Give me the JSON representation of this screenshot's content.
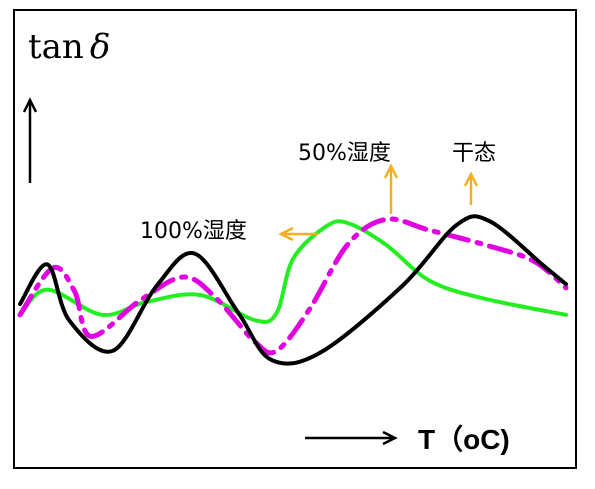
{
  "chart_data": {
    "type": "line",
    "ylabel_main": "tan",
    "ylabel_symbol": "δ",
    "xlabel": "T（oC)",
    "annotations": [
      {
        "id": "dry",
        "label": "干态",
        "series_ref": "dry"
      },
      {
        "id": "hum50",
        "label": "50%湿度",
        "series_ref": "hum50"
      },
      {
        "id": "hum100",
        "label": "100%湿度",
        "series_ref": "hum100"
      }
    ],
    "series": [
      {
        "id": "dry",
        "color": "#000000",
        "style": "solid",
        "points": [
          [
            0,
            0.45
          ],
          [
            5,
            0.67
          ],
          [
            9,
            0.36
          ],
          [
            17,
            0.19
          ],
          [
            25,
            0.55
          ],
          [
            32,
            0.73
          ],
          [
            40,
            0.4
          ],
          [
            46,
            0.14
          ],
          [
            55,
            0.18
          ],
          [
            70,
            0.55
          ],
          [
            80,
            0.89
          ],
          [
            86,
            0.91
          ],
          [
            96,
            0.66
          ],
          [
            100,
            0.56
          ]
        ]
      },
      {
        "id": "hum50",
        "color": "#e000e0",
        "style": "dashdot",
        "points": [
          [
            0,
            0.39
          ],
          [
            6,
            0.65
          ],
          [
            10,
            0.52
          ],
          [
            13,
            0.27
          ],
          [
            22,
            0.47
          ],
          [
            30,
            0.6
          ],
          [
            36,
            0.48
          ],
          [
            43,
            0.24
          ],
          [
            47,
            0.19
          ],
          [
            53,
            0.42
          ],
          [
            60,
            0.78
          ],
          [
            67,
            0.92
          ],
          [
            75,
            0.86
          ],
          [
            85,
            0.78
          ],
          [
            94,
            0.69
          ],
          [
            100,
            0.54
          ]
        ]
      },
      {
        "id": "hum100",
        "color": "#22ee22",
        "style": "solid",
        "points": [
          [
            0,
            0.39
          ],
          [
            5,
            0.53
          ],
          [
            15,
            0.39
          ],
          [
            23,
            0.46
          ],
          [
            33,
            0.5
          ],
          [
            43,
            0.36
          ],
          [
            47,
            0.4
          ],
          [
            50,
            0.7
          ],
          [
            56,
            0.88
          ],
          [
            60,
            0.9
          ],
          [
            67,
            0.78
          ],
          [
            75,
            0.58
          ],
          [
            85,
            0.48
          ],
          [
            100,
            0.39
          ]
        ]
      }
    ]
  }
}
